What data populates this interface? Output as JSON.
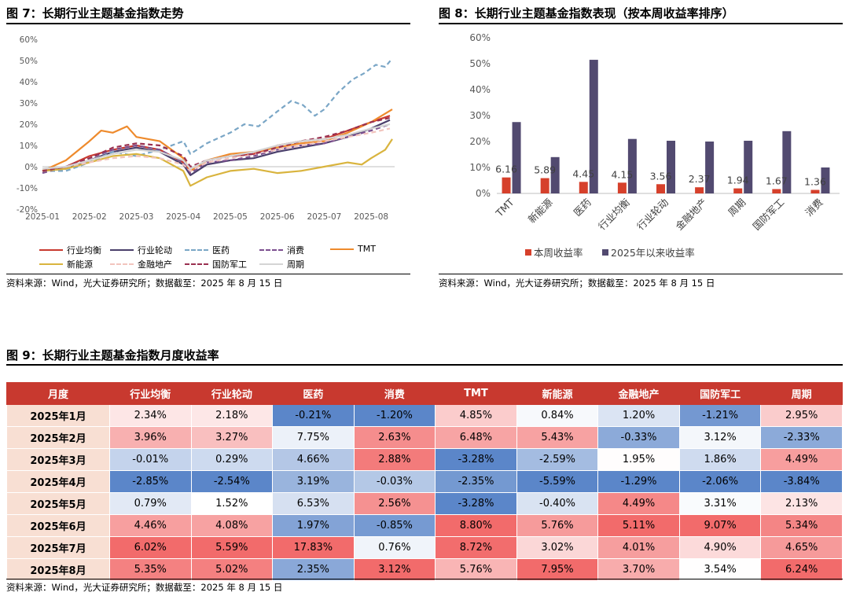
{
  "fig7": {
    "title": "图 7：长期行业主题基金指数走势",
    "source": "资料来源：Wind，光大证券研究所；数据截至：2025 年 8 月 15 日"
  },
  "fig8": {
    "title": "图 8：长期行业主题基金指数表现（按本周收益率排序）",
    "source": "资料来源：Wind，光大证券研究所；数据截至：2025 年 8 月 15 日"
  },
  "fig9": {
    "title": "图 9：长期行业主题基金指数月度收益率",
    "source": "资料来源：Wind，光大证券研究所；数据截至：2025 年 8 月 15 日"
  },
  "colors": {
    "industry_balance": "#c8392f",
    "industry_rotation": "#4a3f6b",
    "pharma": "#7aa6c6",
    "consumption": "#7c4f8f",
    "tmt": "#ee8a2c",
    "new_energy": "#d9b43e",
    "finance_realestate": "#f2c4bd",
    "defense": "#9a3050",
    "cycle": "#d4d4d4",
    "weekly_bar": "#d6402b",
    "ytd_bar": "#524a70",
    "heat_max": "#f26b6b",
    "heat_min": "#5b86c9",
    "header": "#c8392f"
  },
  "chart_data": [
    {
      "type": "line",
      "title": "长期行业主题基金指数走势",
      "x_ticks": [
        "2025-01",
        "2025-02",
        "2025-03",
        "2025-04",
        "2025-05",
        "2025-06",
        "2025-07",
        "2025-08"
      ],
      "ylim": [
        -20,
        60
      ],
      "y_ticks": [
        "-20%",
        "-10%",
        "0%",
        "10%",
        "20%",
        "30%",
        "40%",
        "50%",
        "60%"
      ],
      "x_range": [
        0,
        7.5
      ],
      "series": [
        {
          "name": "行业均衡",
          "color_key": "industry_balance",
          "dash": false,
          "points": [
            [
              0,
              -2
            ],
            [
              0.5,
              0
            ],
            [
              1,
              5
            ],
            [
              1.5,
              8
            ],
            [
              2,
              10
            ],
            [
              2.5,
              8
            ],
            [
              3,
              2
            ],
            [
              3.15,
              -2
            ],
            [
              3.5,
              3
            ],
            [
              4,
              5
            ],
            [
              4.5,
              6
            ],
            [
              5,
              10
            ],
            [
              5.5,
              12
            ],
            [
              6,
              13
            ],
            [
              6.5,
              17
            ],
            [
              7,
              21
            ],
            [
              7.4,
              24
            ]
          ]
        },
        {
          "name": "行业轮动",
          "color_key": "industry_rotation",
          "dash": false,
          "points": [
            [
              0,
              -2
            ],
            [
              0.5,
              -1
            ],
            [
              1,
              3
            ],
            [
              1.5,
              7
            ],
            [
              2,
              9
            ],
            [
              2.5,
              7
            ],
            [
              3,
              1
            ],
            [
              3.15,
              -4
            ],
            [
              3.5,
              1
            ],
            [
              4,
              3
            ],
            [
              4.5,
              4
            ],
            [
              5,
              7
            ],
            [
              5.5,
              9
            ],
            [
              6,
              11
            ],
            [
              6.5,
              14
            ],
            [
              7,
              18
            ],
            [
              7.4,
              22
            ]
          ]
        },
        {
          "name": "医药",
          "color_key": "pharma",
          "dash": true,
          "points": [
            [
              0,
              -2
            ],
            [
              0.5,
              -2
            ],
            [
              1,
              2
            ],
            [
              1.5,
              7
            ],
            [
              2,
              5
            ],
            [
              2.5,
              8
            ],
            [
              3,
              12
            ],
            [
              3.15,
              6
            ],
            [
              3.5,
              11
            ],
            [
              4,
              16
            ],
            [
              4.3,
              20
            ],
            [
              4.6,
              19
            ],
            [
              5,
              26
            ],
            [
              5.3,
              31
            ],
            [
              5.55,
              29
            ],
            [
              5.8,
              24
            ],
            [
              6,
              27
            ],
            [
              6.3,
              35
            ],
            [
              6.6,
              41
            ],
            [
              6.85,
              44
            ],
            [
              7.1,
              48
            ],
            [
              7.3,
              47
            ],
            [
              7.45,
              51
            ]
          ]
        },
        {
          "name": "消费",
          "color_key": "consumption",
          "dash": true,
          "points": [
            [
              0,
              -3
            ],
            [
              0.5,
              0
            ],
            [
              1,
              4
            ],
            [
              1.5,
              8
            ],
            [
              2,
              10
            ],
            [
              2.5,
              8
            ],
            [
              3,
              2
            ],
            [
              3.15,
              -3
            ],
            [
              3.5,
              2
            ],
            [
              4,
              3
            ],
            [
              4.5,
              5
            ],
            [
              5,
              8
            ],
            [
              5.5,
              10
            ],
            [
              6,
              11
            ],
            [
              6.5,
              14
            ],
            [
              7,
              17
            ],
            [
              7.4,
              20
            ]
          ]
        },
        {
          "name": "TMT",
          "color_key": "tmt",
          "dash": false,
          "points": [
            [
              0,
              -2
            ],
            [
              0.5,
              3
            ],
            [
              1,
              12
            ],
            [
              1.25,
              17
            ],
            [
              1.5,
              16
            ],
            [
              1.8,
              19
            ],
            [
              2,
              14
            ],
            [
              2.5,
              12
            ],
            [
              3,
              4
            ],
            [
              3.15,
              -2
            ],
            [
              3.5,
              3
            ],
            [
              4,
              6
            ],
            [
              4.5,
              7
            ],
            [
              5,
              9
            ],
            [
              5.5,
              11
            ],
            [
              6,
              12
            ],
            [
              6.5,
              16
            ],
            [
              7,
              21
            ],
            [
              7.45,
              27
            ]
          ]
        },
        {
          "name": "新能源",
          "color_key": "new_energy",
          "dash": false,
          "points": [
            [
              0,
              -2
            ],
            [
              0.5,
              -1
            ],
            [
              1,
              2
            ],
            [
              1.5,
              5
            ],
            [
              2,
              6
            ],
            [
              2.5,
              4
            ],
            [
              3,
              -2
            ],
            [
              3.15,
              -9
            ],
            [
              3.5,
              -5
            ],
            [
              4,
              -2
            ],
            [
              4.5,
              -1
            ],
            [
              5,
              -3
            ],
            [
              5.5,
              -2
            ],
            [
              6,
              0
            ],
            [
              6.5,
              2
            ],
            [
              6.8,
              1
            ],
            [
              7,
              4
            ],
            [
              7.3,
              8
            ],
            [
              7.45,
              13
            ]
          ]
        },
        {
          "name": "金融地产",
          "color_key": "finance_realestate",
          "dash": true,
          "points": [
            [
              0,
              -1
            ],
            [
              0.5,
              0
            ],
            [
              1,
              2
            ],
            [
              1.5,
              4
            ],
            [
              2,
              5
            ],
            [
              2.5,
              4
            ],
            [
              3,
              1
            ],
            [
              3.15,
              -2
            ],
            [
              3.5,
              2
            ],
            [
              4,
              4
            ],
            [
              4.5,
              6
            ],
            [
              5,
              8
            ],
            [
              5.5,
              10
            ],
            [
              6,
              12
            ],
            [
              6.5,
              14
            ],
            [
              7,
              16
            ],
            [
              7.4,
              18
            ]
          ]
        },
        {
          "name": "国防军工",
          "color_key": "defense",
          "dash": true,
          "points": [
            [
              0,
              -2
            ],
            [
              0.5,
              0
            ],
            [
              1,
              4
            ],
            [
              1.5,
              9
            ],
            [
              2,
              11
            ],
            [
              2.5,
              10
            ],
            [
              3,
              5
            ],
            [
              3.15,
              0
            ],
            [
              3.5,
              3
            ],
            [
              4,
              5
            ],
            [
              4.5,
              6
            ],
            [
              5,
              9
            ],
            [
              5.5,
              12
            ],
            [
              6,
              14
            ],
            [
              6.5,
              17
            ],
            [
              7,
              21
            ],
            [
              7.4,
              23
            ]
          ]
        },
        {
          "name": "周期",
          "color_key": "cycle",
          "dash": false,
          "points": [
            [
              0,
              -1
            ],
            [
              0.5,
              0
            ],
            [
              1,
              3
            ],
            [
              1.5,
              6
            ],
            [
              2,
              8
            ],
            [
              2.5,
              7
            ],
            [
              3,
              3
            ],
            [
              3.15,
              -1
            ],
            [
              3.5,
              3
            ],
            [
              4,
              5
            ],
            [
              4.5,
              7
            ],
            [
              5,
              10
            ],
            [
              5.5,
              12
            ],
            [
              6,
              13
            ],
            [
              6.5,
              15
            ],
            [
              7,
              18
            ],
            [
              7.4,
              20
            ]
          ]
        }
      ]
    },
    {
      "type": "bar",
      "title": "长期行业主题基金指数表现（按本周收益率排序）",
      "categories": [
        "TMT",
        "新能源",
        "医药",
        "行业均衡",
        "行业轮动",
        "金融地产",
        "周期",
        "国防军工",
        "消费"
      ],
      "ylim": [
        0,
        60
      ],
      "y_ticks": [
        "0%",
        "10%",
        "20%",
        "30%",
        "40%",
        "50%",
        "60%"
      ],
      "series": [
        {
          "name": "本周收益率",
          "color_key": "weekly_bar",
          "values": [
            6.16,
            5.89,
            4.45,
            4.15,
            3.56,
            2.37,
            1.94,
            1.67,
            1.36
          ],
          "labels": [
            "6.16",
            "5.89",
            "4.45",
            "4.15",
            "3.56",
            "2.37",
            "1.94",
            "1.67",
            "1.36"
          ]
        },
        {
          "name": "2025年以来收益率",
          "color_key": "ytd_bar",
          "values": [
            27.5,
            14.0,
            51.5,
            21.0,
            20.3,
            20.0,
            20.3,
            24.0,
            10.0
          ]
        }
      ]
    },
    {
      "type": "table",
      "title": "长期行业主题基金指数月度收益率",
      "columns": [
        "月度",
        "行业均衡",
        "行业轮动",
        "医药",
        "消费",
        "TMT",
        "新能源",
        "金融地产",
        "国防军工",
        "周期"
      ],
      "rows": [
        {
          "month": "2025年1月",
          "values": [
            "2.34%",
            "2.18%",
            "-0.21%",
            "-1.20%",
            "4.85%",
            "0.84%",
            "1.20%",
            "-1.21%",
            "2.95%"
          ]
        },
        {
          "month": "2025年2月",
          "values": [
            "3.96%",
            "3.27%",
            "7.75%",
            "2.63%",
            "6.48%",
            "5.43%",
            "-0.33%",
            "3.12%",
            "-2.33%"
          ]
        },
        {
          "month": "2025年3月",
          "values": [
            "-0.01%",
            "0.29%",
            "4.66%",
            "2.88%",
            "-3.28%",
            "-2.59%",
            "1.95%",
            "1.86%",
            "4.49%"
          ]
        },
        {
          "month": "2025年4月",
          "values": [
            "-2.85%",
            "-2.54%",
            "3.19%",
            "-0.03%",
            "-2.35%",
            "-5.59%",
            "-1.29%",
            "-2.06%",
            "-3.84%"
          ]
        },
        {
          "month": "2025年5月",
          "values": [
            "0.79%",
            "1.52%",
            "6.53%",
            "2.56%",
            "-3.28%",
            "-0.40%",
            "4.49%",
            "3.31%",
            "2.13%"
          ]
        },
        {
          "month": "2025年6月",
          "values": [
            "4.46%",
            "4.08%",
            "1.97%",
            "-0.85%",
            "8.80%",
            "5.76%",
            "5.11%",
            "9.07%",
            "5.34%"
          ]
        },
        {
          "month": "2025年7月",
          "values": [
            "6.02%",
            "5.59%",
            "17.83%",
            "0.76%",
            "8.72%",
            "3.02%",
            "4.01%",
            "4.90%",
            "4.65%"
          ]
        },
        {
          "month": "2025年8月",
          "values": [
            "5.35%",
            "5.02%",
            "2.35%",
            "3.12%",
            "5.76%",
            "7.95%",
            "3.70%",
            "3.54%",
            "6.24%"
          ]
        }
      ]
    }
  ]
}
